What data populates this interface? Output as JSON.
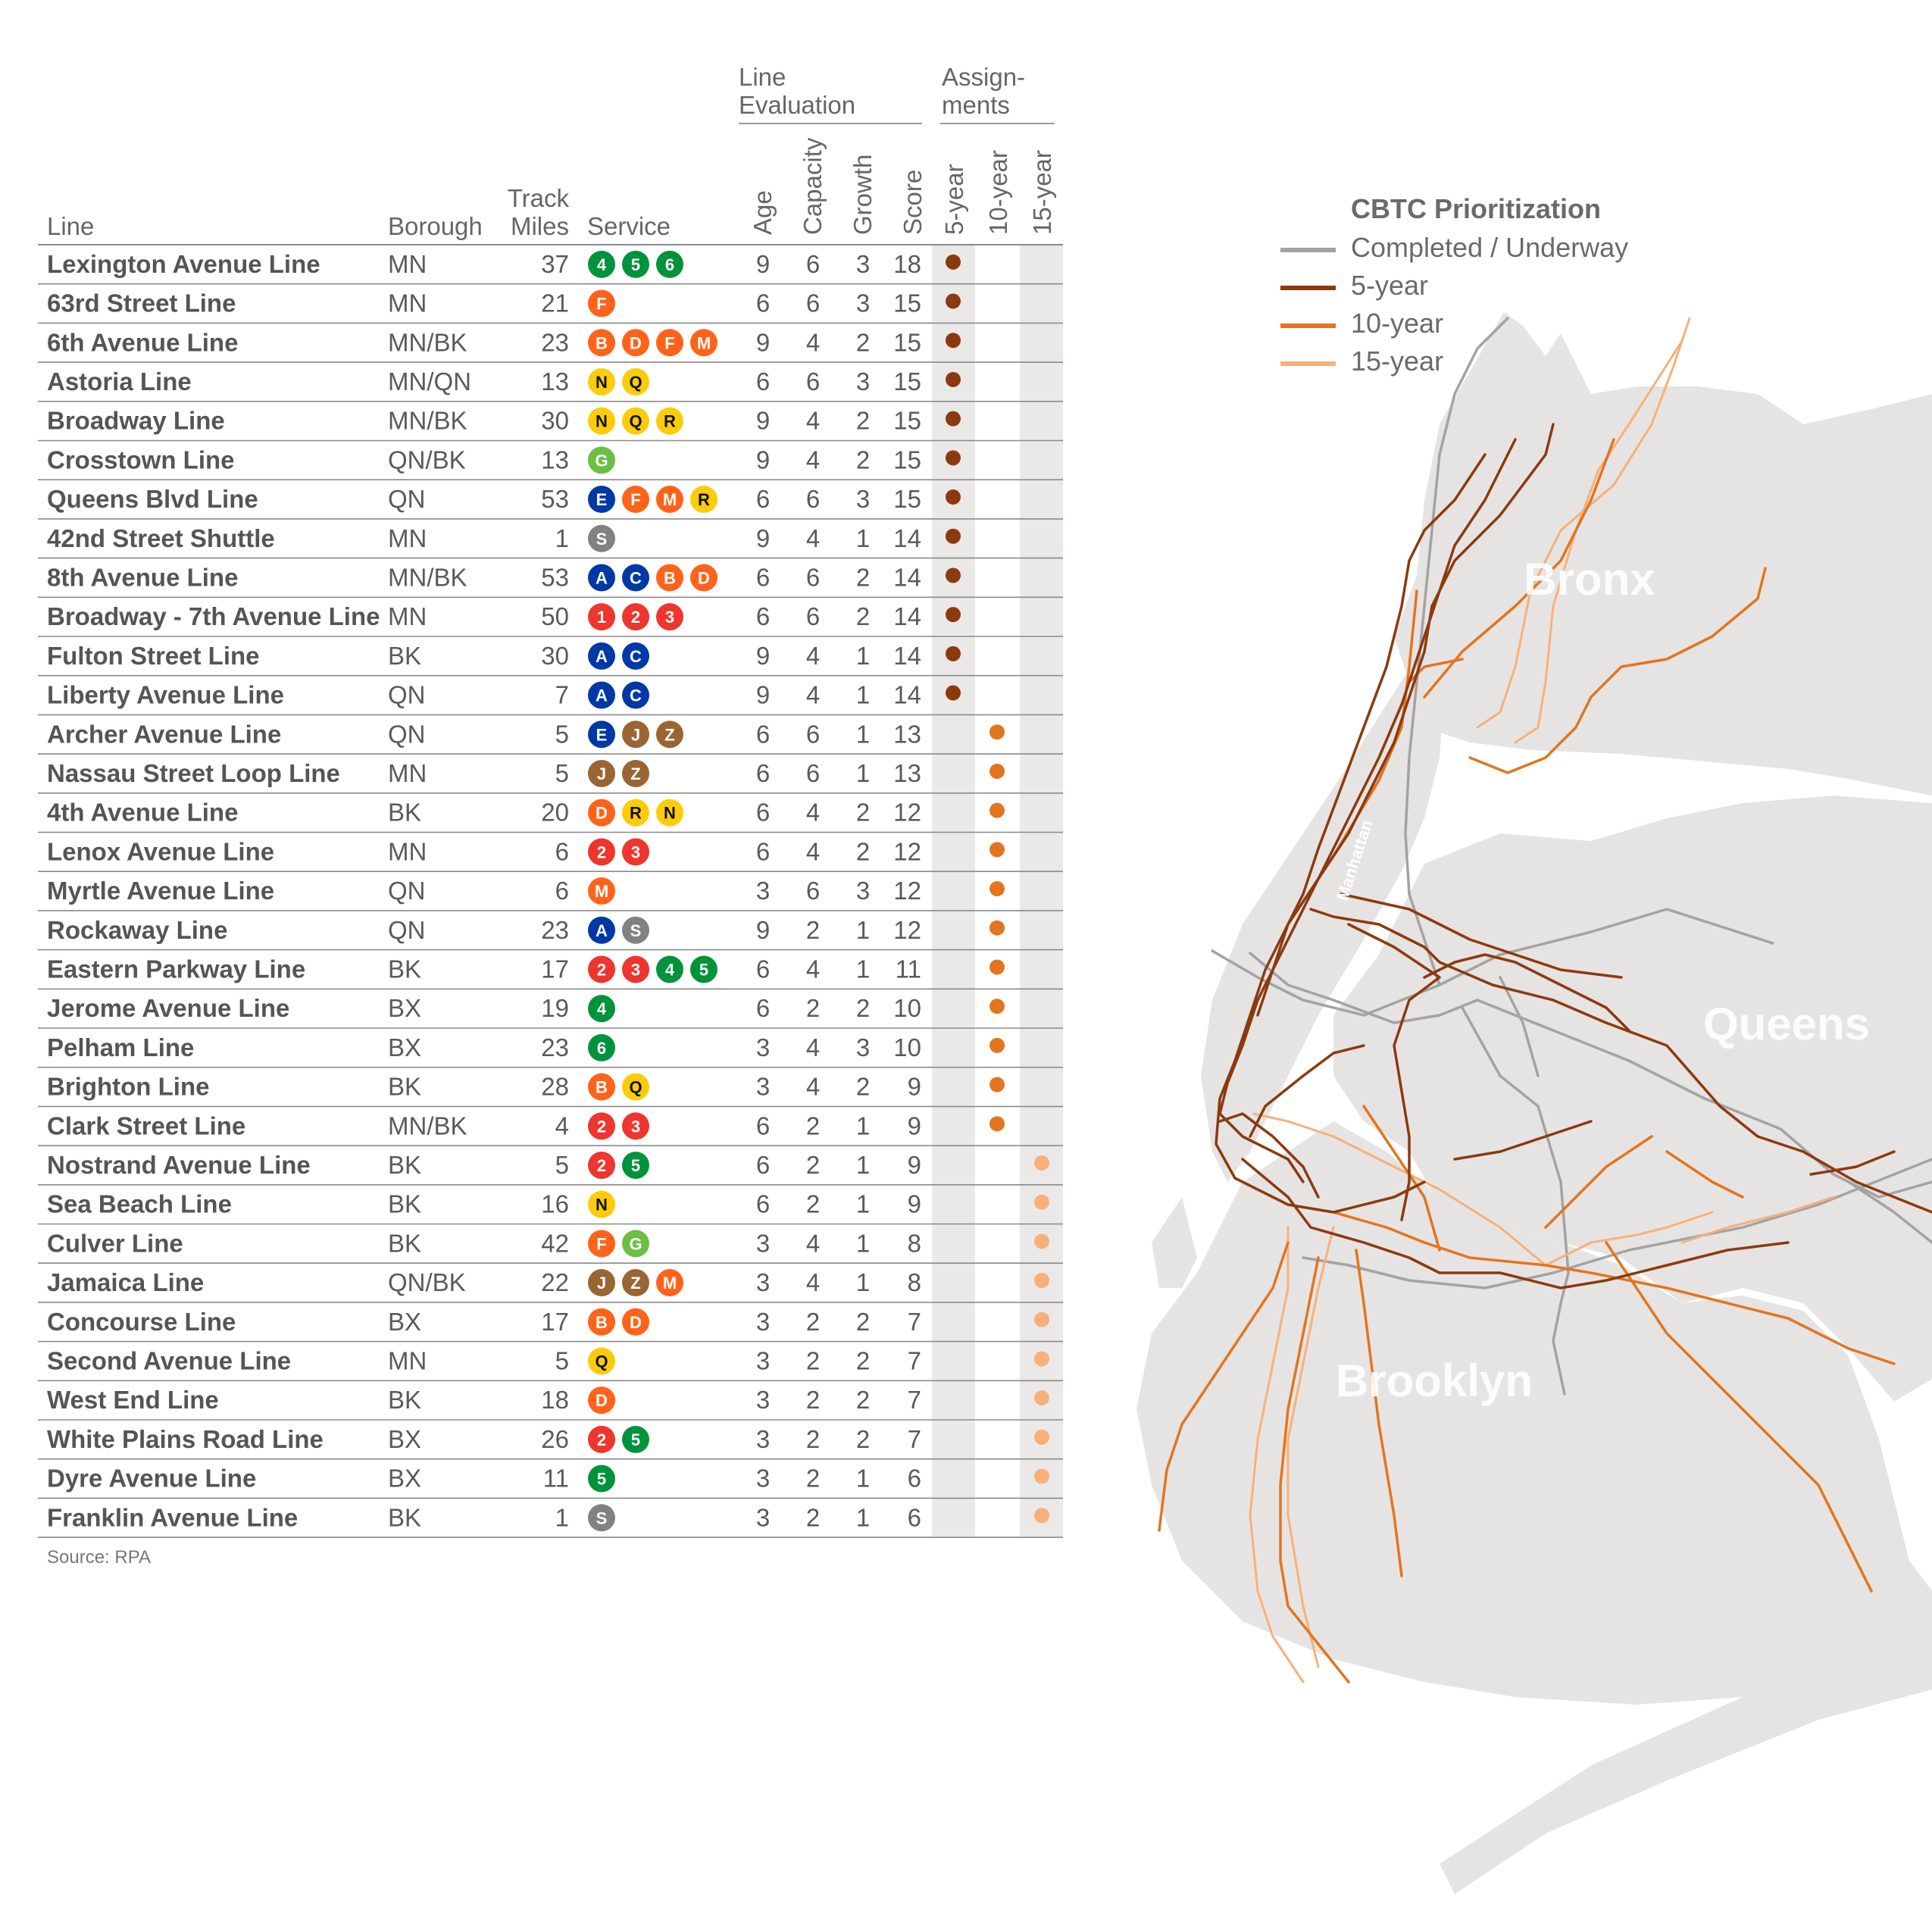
{
  "columns": {
    "line": "Line",
    "borough": "Borough",
    "track_miles": [
      "Track",
      "Miles"
    ],
    "service": "Service",
    "group_evaluation": [
      "Line",
      "Evaluation"
    ],
    "group_assignments": [
      "Assign-",
      "ments"
    ],
    "age": "Age",
    "capacity": "Capacity",
    "growth": "Growth",
    "score": "Score",
    "y5": "5-year",
    "y10": "10-year",
    "y15": "15-year"
  },
  "service_colors": {
    "1": "#ee352e",
    "2": "#ee352e",
    "3": "#ee352e",
    "4": "#00933c",
    "5": "#00933c",
    "6": "#00933c",
    "A": "#0039a6",
    "C": "#0039a6",
    "E": "#0039a6",
    "B": "#ff6319",
    "D": "#ff6319",
    "F": "#ff6319",
    "M": "#ff6319",
    "N": "#fccc0a",
    "Q": "#fccc0a",
    "R": "#fccc0a",
    "G": "#6cbe45",
    "J": "#996633",
    "Z": "#996633",
    "S": "#808183"
  },
  "dark_text_services": [
    "N",
    "Q",
    "R"
  ],
  "priority_colors": {
    "5-year": "#8b3a0f",
    "10-year": "#e2751f",
    "15-year": "#f7b07a",
    "completed": "#a3a3a3"
  },
  "rows": [
    {
      "line": "Lexington Avenue Line",
      "borough": "MN",
      "miles": "37",
      "services": [
        "4",
        "5",
        "6"
      ],
      "age": "9",
      "capacity": "6",
      "growth": "3",
      "score": "18",
      "assignment": "5-year"
    },
    {
      "line": "63rd Street Line",
      "borough": "MN",
      "miles": "21",
      "services": [
        "F"
      ],
      "age": "6",
      "capacity": "6",
      "growth": "3",
      "score": "15",
      "assignment": "5-year"
    },
    {
      "line": "6th Avenue Line",
      "borough": "MN/BK",
      "miles": "23",
      "services": [
        "B",
        "D",
        "F",
        "M"
      ],
      "age": "9",
      "capacity": "4",
      "growth": "2",
      "score": "15",
      "assignment": "5-year"
    },
    {
      "line": "Astoria Line",
      "borough": "MN/QN",
      "miles": "13",
      "services": [
        "N",
        "Q"
      ],
      "age": "6",
      "capacity": "6",
      "growth": "3",
      "score": "15",
      "assignment": "5-year"
    },
    {
      "line": "Broadway Line",
      "borough": "MN/BK",
      "miles": "30",
      "services": [
        "N",
        "Q",
        "R"
      ],
      "age": "9",
      "capacity": "4",
      "growth": "2",
      "score": "15",
      "assignment": "5-year"
    },
    {
      "line": "Crosstown Line",
      "borough": "QN/BK",
      "miles": "13",
      "services": [
        "G"
      ],
      "age": "9",
      "capacity": "4",
      "growth": "2",
      "score": "15",
      "assignment": "5-year"
    },
    {
      "line": "Queens Blvd Line",
      "borough": "QN",
      "miles": "53",
      "services": [
        "E",
        "F",
        "M",
        "R"
      ],
      "age": "6",
      "capacity": "6",
      "growth": "3",
      "score": "15",
      "assignment": "5-year"
    },
    {
      "line": "42nd Street Shuttle",
      "borough": "MN",
      "miles": "1",
      "services": [
        "S"
      ],
      "age": "9",
      "capacity": "4",
      "growth": "1",
      "score": "14",
      "assignment": "5-year"
    },
    {
      "line": "8th Avenue Line",
      "borough": "MN/BK",
      "miles": "53",
      "services": [
        "A",
        "C",
        "B",
        "D"
      ],
      "age": "6",
      "capacity": "6",
      "growth": "2",
      "score": "14",
      "assignment": "5-year"
    },
    {
      "line": "Broadway - 7th Avenue Line",
      "borough": "MN",
      "miles": "50",
      "services": [
        "1",
        "2",
        "3"
      ],
      "age": "6",
      "capacity": "6",
      "growth": "2",
      "score": "14",
      "assignment": "5-year"
    },
    {
      "line": "Fulton Street Line",
      "borough": "BK",
      "miles": "30",
      "services": [
        "A",
        "C"
      ],
      "age": "9",
      "capacity": "4",
      "growth": "1",
      "score": "14",
      "assignment": "5-year"
    },
    {
      "line": "Liberty Avenue Line",
      "borough": "QN",
      "miles": "7",
      "services": [
        "A",
        "C"
      ],
      "age": "9",
      "capacity": "4",
      "growth": "1",
      "score": "14",
      "assignment": "5-year"
    },
    {
      "line": "Archer Avenue Line",
      "borough": "QN",
      "miles": "5",
      "services": [
        "E",
        "J",
        "Z"
      ],
      "age": "6",
      "capacity": "6",
      "growth": "1",
      "score": "13",
      "assignment": "10-year"
    },
    {
      "line": "Nassau Street Loop Line",
      "borough": "MN",
      "miles": "5",
      "services": [
        "J",
        "Z"
      ],
      "age": "6",
      "capacity": "6",
      "growth": "1",
      "score": "13",
      "assignment": "10-year"
    },
    {
      "line": "4th Avenue Line",
      "borough": "BK",
      "miles": "20",
      "services": [
        "D",
        "R",
        "N"
      ],
      "age": "6",
      "capacity": "4",
      "growth": "2",
      "score": "12",
      "assignment": "10-year"
    },
    {
      "line": "Lenox Avenue Line",
      "borough": "MN",
      "miles": "6",
      "services": [
        "2",
        "3"
      ],
      "age": "6",
      "capacity": "4",
      "growth": "2",
      "score": "12",
      "assignment": "10-year"
    },
    {
      "line": "Myrtle Avenue Line",
      "borough": "QN",
      "miles": "6",
      "services": [
        "M"
      ],
      "age": "3",
      "capacity": "6",
      "growth": "3",
      "score": "12",
      "assignment": "10-year"
    },
    {
      "line": "Rockaway Line",
      "borough": "QN",
      "miles": "23",
      "services": [
        "A",
        "S"
      ],
      "age": "9",
      "capacity": "2",
      "growth": "1",
      "score": "12",
      "assignment": "10-year"
    },
    {
      "line": "Eastern Parkway Line",
      "borough": "BK",
      "miles": "17",
      "services": [
        "2",
        "3",
        "4",
        "5"
      ],
      "age": "6",
      "capacity": "4",
      "growth": "1",
      "score": "11",
      "assignment": "10-year"
    },
    {
      "line": "Jerome Avenue Line",
      "borough": "BX",
      "miles": "19",
      "services": [
        "4"
      ],
      "age": "6",
      "capacity": "2",
      "growth": "2",
      "score": "10",
      "assignment": "10-year"
    },
    {
      "line": "Pelham Line",
      "borough": "BX",
      "miles": "23",
      "services": [
        "6"
      ],
      "age": "3",
      "capacity": "4",
      "growth": "3",
      "score": "10",
      "assignment": "10-year"
    },
    {
      "line": "Brighton Line",
      "borough": "BK",
      "miles": "28",
      "services": [
        "B",
        "Q"
      ],
      "age": "3",
      "capacity": "4",
      "growth": "2",
      "score": "9",
      "assignment": "10-year"
    },
    {
      "line": "Clark Street Line",
      "borough": "MN/BK",
      "miles": "4",
      "services": [
        "2",
        "3"
      ],
      "age": "6",
      "capacity": "2",
      "growth": "1",
      "score": "9",
      "assignment": "10-year"
    },
    {
      "line": "Nostrand Avenue Line",
      "borough": "BK",
      "miles": "5",
      "services": [
        "2",
        "5"
      ],
      "age": "6",
      "capacity": "2",
      "growth": "1",
      "score": "9",
      "assignment": "15-year"
    },
    {
      "line": "Sea Beach Line",
      "borough": "BK",
      "miles": "16",
      "services": [
        "N"
      ],
      "age": "6",
      "capacity": "2",
      "growth": "1",
      "score": "9",
      "assignment": "15-year"
    },
    {
      "line": "Culver Line",
      "borough": "BK",
      "miles": "42",
      "services": [
        "F",
        "G"
      ],
      "age": "3",
      "capacity": "4",
      "growth": "1",
      "score": "8",
      "assignment": "15-year"
    },
    {
      "line": "Jamaica Line",
      "borough": "QN/BK",
      "miles": "22",
      "services": [
        "J",
        "Z",
        "M"
      ],
      "age": "3",
      "capacity": "4",
      "growth": "1",
      "score": "8",
      "assignment": "15-year"
    },
    {
      "line": "Concourse Line",
      "borough": "BX",
      "miles": "17",
      "services": [
        "B",
        "D"
      ],
      "age": "3",
      "capacity": "2",
      "growth": "2",
      "score": "7",
      "assignment": "15-year"
    },
    {
      "line": "Second Avenue Line",
      "borough": "MN",
      "miles": "5",
      "services": [
        "Q"
      ],
      "age": "3",
      "capacity": "2",
      "growth": "2",
      "score": "7",
      "assignment": "15-year"
    },
    {
      "line": "West End Line",
      "borough": "BK",
      "miles": "18",
      "services": [
        "D"
      ],
      "age": "3",
      "capacity": "2",
      "growth": "2",
      "score": "7",
      "assignment": "15-year"
    },
    {
      "line": "White Plains Road Line",
      "borough": "BX",
      "miles": "26",
      "services": [
        "2",
        "5"
      ],
      "age": "3",
      "capacity": "2",
      "growth": "2",
      "score": "7",
      "assignment": "15-year"
    },
    {
      "line": "Dyre Avenue Line",
      "borough": "BX",
      "miles": "11",
      "services": [
        "5"
      ],
      "age": "3",
      "capacity": "2",
      "growth": "1",
      "score": "6",
      "assignment": "15-year"
    },
    {
      "line": "Franklin Avenue Line",
      "borough": "BK",
      "miles": "1",
      "services": [
        "S"
      ],
      "age": "3",
      "capacity": "2",
      "growth": "1",
      "score": "6",
      "assignment": "15-year"
    }
  ],
  "source": "Source: RPA",
  "legend": {
    "title": "CBTC Prioritization",
    "items": [
      "Completed / Underway",
      "5-year",
      "10-year",
      "15-year"
    ]
  },
  "map": {
    "labels": [
      "Bronx",
      "Queens",
      "Brooklyn",
      "Manhattan"
    ],
    "land_color": "#e6e4e2"
  }
}
